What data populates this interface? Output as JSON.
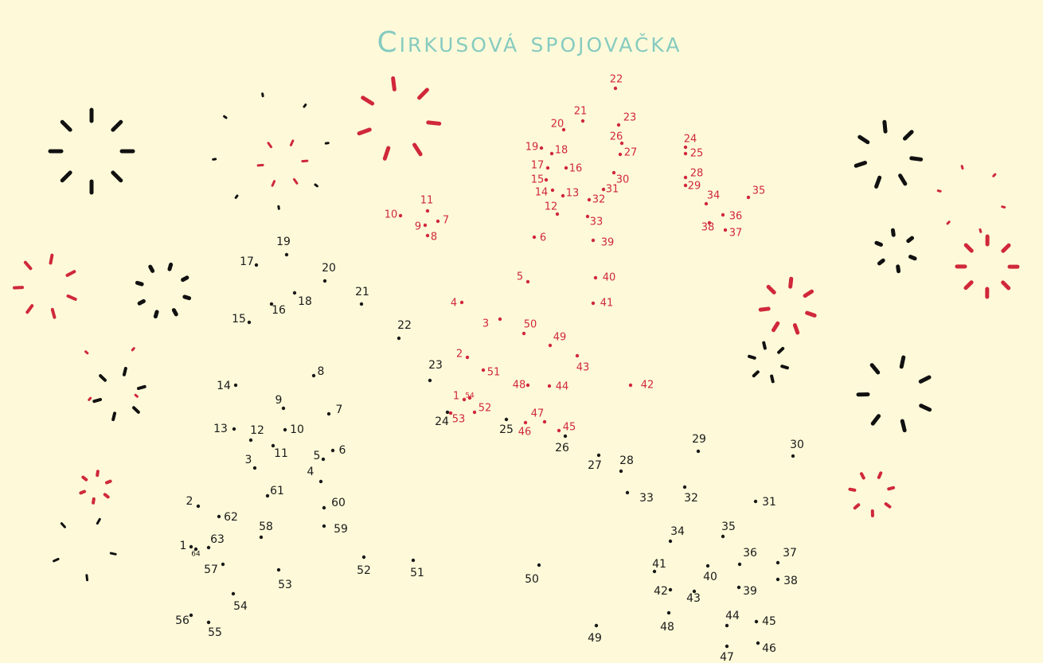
{
  "title": "Cirkusová spojovačka",
  "black_dots": {
    "labels": [
      "1",
      "2",
      "3",
      "4",
      "5",
      "6",
      "7",
      "8",
      "9",
      "10",
      "11",
      "12",
      "13",
      "14",
      "15",
      "16",
      "17",
      "18",
      "19",
      "20",
      "21",
      "22",
      "23",
      "24",
      "25",
      "26",
      "27",
      "28",
      "29",
      "30",
      "31",
      "32",
      "33",
      "34",
      "35",
      "36",
      "37",
      "38",
      "39",
      "40",
      "41",
      "42",
      "43",
      "44",
      "45",
      "46",
      "47",
      "48",
      "49",
      "50",
      "51",
      "52",
      "53",
      "54",
      "55",
      "56",
      "57",
      "58",
      "59",
      "60",
      "61",
      "62",
      "63",
      "64"
    ]
  },
  "red_dots": {
    "labels": [
      "1",
      "2",
      "3",
      "4",
      "5",
      "6",
      "7",
      "8",
      "9",
      "10",
      "11",
      "12",
      "13",
      "14",
      "15",
      "16",
      "17",
      "18",
      "19",
      "20",
      "21",
      "22",
      "23",
      "24",
      "25",
      "26",
      "27",
      "28",
      "29",
      "30",
      "31",
      "32",
      "33",
      "34",
      "35",
      "36",
      "37",
      "38",
      "39",
      "40",
      "41",
      "42",
      "43",
      "44",
      "45",
      "46",
      "47",
      "48",
      "49",
      "50",
      "51",
      "52",
      "53",
      "54"
    ]
  }
}
